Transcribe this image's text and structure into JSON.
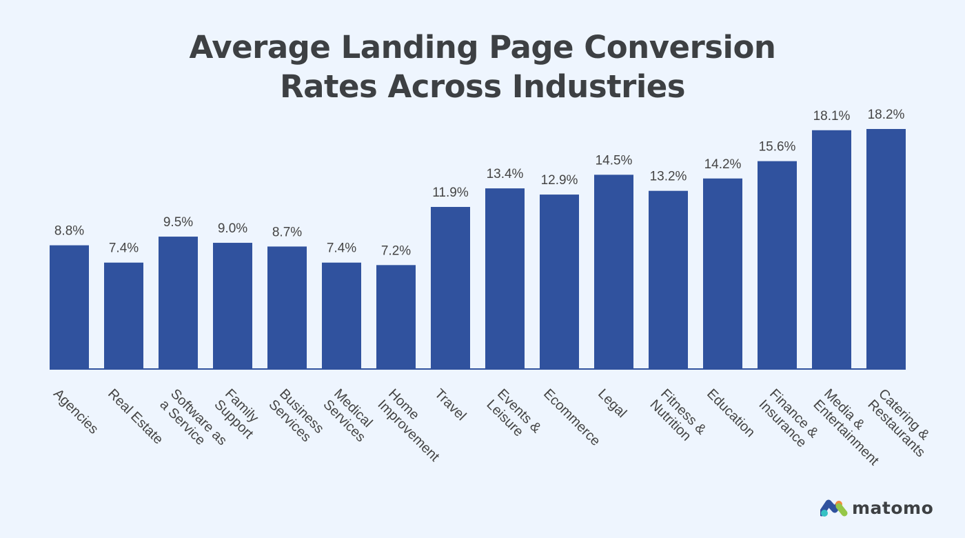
{
  "chart_data": {
    "type": "bar",
    "title": "Average Landing Page Conversion Rates Across Industries",
    "title_lines": [
      "Average Landing Page Conversion",
      "Rates Across Industries"
    ],
    "categories": [
      [
        "Agencies"
      ],
      [
        "Real Estate"
      ],
      [
        "Software as",
        "a Service"
      ],
      [
        "Family",
        "Support"
      ],
      [
        "Business",
        "Services"
      ],
      [
        "Medical",
        "Services"
      ],
      [
        "Home",
        "Improvement"
      ],
      [
        "Travel"
      ],
      [
        "Events &",
        "Leisure"
      ],
      [
        "Ecommerce"
      ],
      [
        "Legal"
      ],
      [
        "Fitness &",
        "Nutrition"
      ],
      [
        "Education"
      ],
      [
        "Finance &",
        "Insurance"
      ],
      [
        "Media &",
        "Entertainment"
      ],
      [
        "Catering &",
        "Restaurants"
      ]
    ],
    "values": [
      8.8,
      7.4,
      9.5,
      9.0,
      8.7,
      7.4,
      7.2,
      11.9,
      13.4,
      12.9,
      14.5,
      13.2,
      14.2,
      15.6,
      18.1,
      18.2
    ],
    "data_labels": [
      "8.8%",
      "7.4%",
      "9.5%",
      "9.0%",
      "8.7%",
      "7.4%",
      "7.2%",
      "11.9%",
      "13.4%",
      "12.9%",
      "14.5%",
      "13.2%",
      "14.2%",
      "15.6%",
      "18.1%",
      "18.2%"
    ],
    "xlabel": "",
    "ylabel": "",
    "ylim": [
      -1.2,
      18.2
    ],
    "grid": false,
    "bar_color": "#30529e",
    "text_color": "#444444"
  },
  "logo": {
    "text": "matomo"
  }
}
